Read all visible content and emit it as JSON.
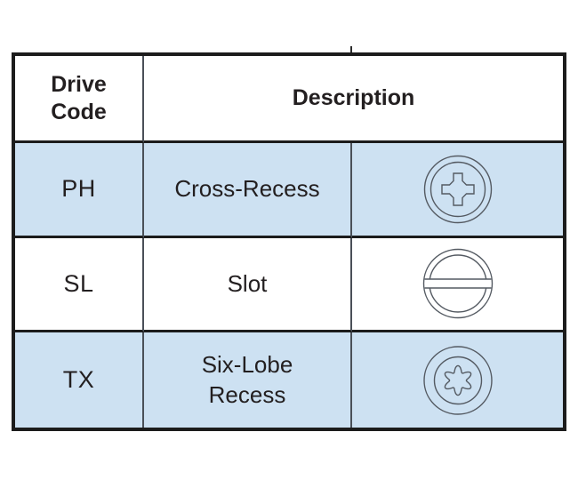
{
  "table": {
    "header": {
      "drive_code": "Drive Code",
      "description": "Description"
    },
    "rows": [
      {
        "code": "PH",
        "description": "Cross-Recess",
        "icon": "cross-recess-icon",
        "highlighted": true
      },
      {
        "code": "SL",
        "description": "Slot",
        "icon": "slot-icon",
        "highlighted": false
      },
      {
        "code": "TX",
        "description": "Six-Lobe Recess",
        "icon": "six-lobe-recess-icon",
        "highlighted": true
      }
    ],
    "colors": {
      "highlight_blue": "#cde1f2",
      "border_black": "#1c1c1c",
      "divider_gray": "#4a5058",
      "icon_stroke": "#545a62",
      "text": "#231f20"
    }
  }
}
